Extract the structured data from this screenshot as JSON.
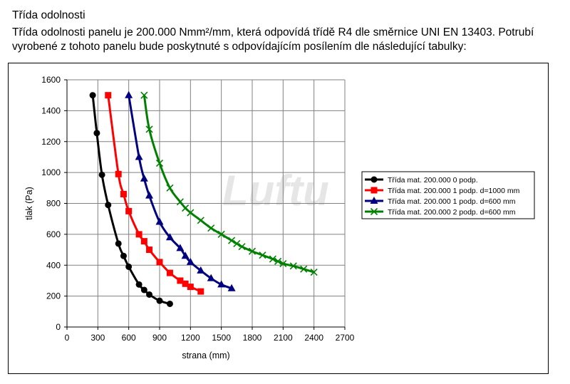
{
  "header": {
    "title": "Třída odolnosti",
    "paragraph_line1": "Třída odolnosti panelu je 200.000 Nmm²/mm, která odpovídá třídě R4 dle směrnice UNI EN 13403. Potrubí",
    "paragraph_line2": "vyrobené z tohoto panelu bude poskytnuté s odpovídajícím posílením dle následující tabulky:"
  },
  "watermark": "Luftu",
  "chart_data": {
    "type": "line",
    "title": "",
    "xlabel": "strana (mm)",
    "ylabel": "tlak (Pa)",
    "xlim": [
      0,
      2700
    ],
    "ylim": [
      0,
      1600
    ],
    "xticks": [
      "0",
      "300",
      "600",
      "900",
      "1200",
      "1500",
      "1800",
      "2100",
      "2400",
      "2700"
    ],
    "yticks": [
      "0",
      "200",
      "400",
      "600",
      "800",
      "1000",
      "1200",
      "1400",
      "1600"
    ],
    "grid": true,
    "legend_position": "right",
    "series": [
      {
        "name": "Třída mat. 200.000 0 podp.",
        "color": "#000000",
        "marker": "circle",
        "x": [
          250,
          290,
          340,
          400,
          500,
          550,
          600,
          700,
          750,
          800,
          900,
          1000
        ],
        "y": [
          1500,
          1255,
          985,
          790,
          540,
          460,
          390,
          275,
          240,
          210,
          170,
          150
        ]
      },
      {
        "name": "Třída mat. 200.000 1 podp. d=1000 mm",
        "color": "#ff0000",
        "marker": "square",
        "x": [
          400,
          500,
          550,
          600,
          700,
          750,
          800,
          900,
          1000,
          1100,
          1150,
          1200,
          1300
        ],
        "y": [
          1500,
          990,
          860,
          750,
          600,
          555,
          500,
          420,
          350,
          300,
          280,
          260,
          230
        ]
      },
      {
        "name": "Třída mat. 200.000 1 podp. d=600 mm",
        "color": "#000080",
        "marker": "triangle",
        "x": [
          600,
          700,
          750,
          800,
          900,
          1000,
          1100,
          1150,
          1200,
          1300,
          1400,
          1500,
          1600
        ],
        "y": [
          1500,
          1100,
          960,
          850,
          680,
          580,
          510,
          460,
          420,
          365,
          315,
          275,
          250
        ]
      },
      {
        "name": "Třída mat. 200.000 2 podp. d=600 mm",
        "color": "#008000",
        "marker": "x",
        "x": [
          750,
          800,
          900,
          1000,
          1100,
          1150,
          1200,
          1300,
          1400,
          1500,
          1600,
          1650,
          1700,
          1800,
          1900,
          2000,
          2050,
          2100,
          2200,
          2300,
          2400
        ],
        "y": [
          1500,
          1280,
          1060,
          900,
          810,
          770,
          740,
          690,
          640,
          600,
          560,
          540,
          520,
          490,
          465,
          440,
          425,
          410,
          395,
          375,
          355
        ]
      }
    ]
  }
}
